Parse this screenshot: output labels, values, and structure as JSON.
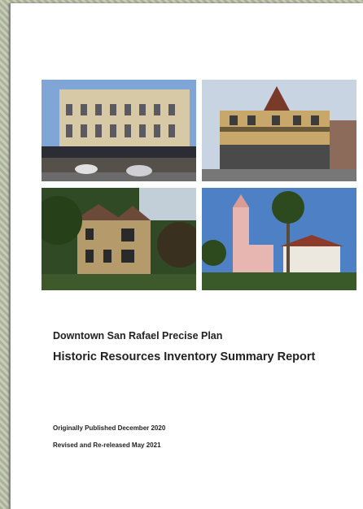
{
  "cover": {
    "title": "Downtown San Rafael Precise Plan",
    "subtitle": "Historic Resources Inventory Summary Report",
    "published": "Originally Published December 2020",
    "revised": "Revised and Re-released May 2021"
  }
}
